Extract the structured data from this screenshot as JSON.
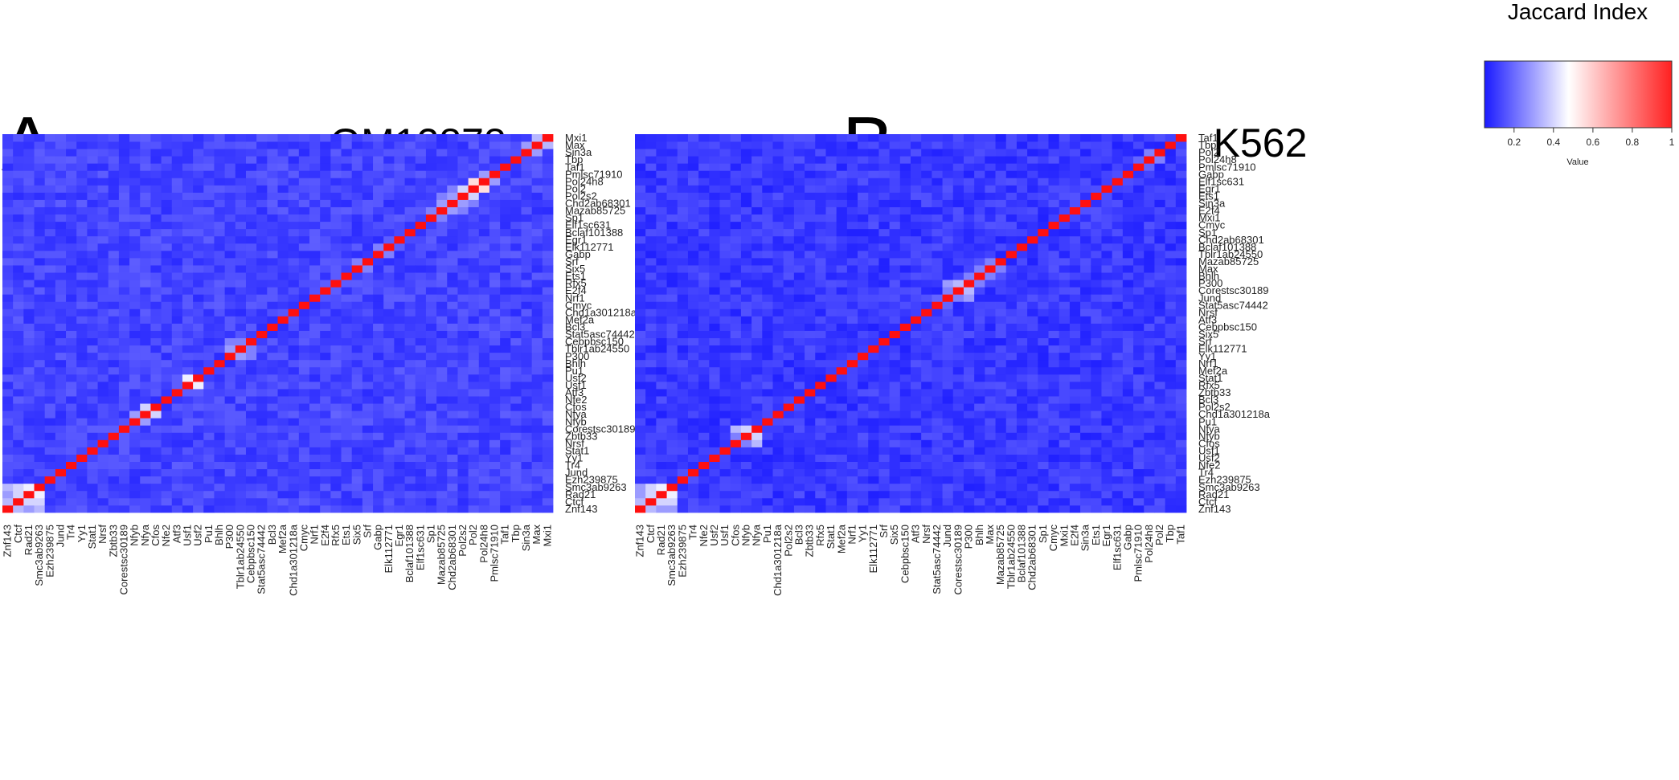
{
  "legend": {
    "title": "Jaccard Index",
    "label": "Value",
    "ticks": [
      "0.2",
      "0.4",
      "0.6",
      "0.8",
      "1"
    ],
    "tick_values": [
      0.2,
      0.4,
      0.6,
      0.8,
      1.0
    ],
    "range": [
      0.05,
      1.0
    ]
  },
  "colors": {
    "low": "#1010ff",
    "mid": "#ffffff",
    "high": "#ff1010"
  },
  "chart_data": [
    {
      "type": "heatmap",
      "panel": "A",
      "title": "GM12878",
      "labels": [
        "Znf143",
        "Ctcf",
        "Rad21",
        "Smc3ab9263",
        "Ezh239875",
        "Jund",
        "Tr4",
        "Yy1",
        "Stat1",
        "Nrsf",
        "Zbtb33",
        "Corestsc30189",
        "Nfyb",
        "Nfya",
        "Cfos",
        "Nfe2",
        "Atf3",
        "Usf1",
        "Usf2",
        "Pu1",
        "Bhlh",
        "P300",
        "Tblr1ab24550",
        "Cebpbsc150",
        "Stat5asc74442",
        "Bcl3",
        "Mef2a",
        "Chd1a301218a",
        "Cmyc",
        "Nrf1",
        "E2f4",
        "Rfx5",
        "Ets1",
        "Six5",
        "Srf",
        "Gabp",
        "Elk112771",
        "Egr1",
        "Bclaf101388",
        "Elf1sc631",
        "Sp1",
        "Mazab85725",
        "Chd2ab68301",
        "Pol2s2",
        "Pol2",
        "Pol24h8",
        "Pmlsc71910",
        "Taf1",
        "Tbp",
        "Sin3a",
        "Max",
        "Mxi1"
      ],
      "diagonal_value": 1.0,
      "background_value": 0.1,
      "highlights": [
        {
          "a": "Znf143",
          "b": "Ctcf",
          "value": 0.35
        },
        {
          "a": "Znf143",
          "b": "Rad21",
          "value": 0.3
        },
        {
          "a": "Znf143",
          "b": "Smc3ab9263",
          "value": 0.35
        },
        {
          "a": "Ctcf",
          "b": "Rad21",
          "value": 0.4
        },
        {
          "a": "Ctcf",
          "b": "Smc3ab9263",
          "value": 0.4
        },
        {
          "a": "Rad21",
          "b": "Smc3ab9263",
          "value": 0.45
        },
        {
          "a": "Nfya",
          "b": "Cfos",
          "value": 0.4
        },
        {
          "a": "Nfyb",
          "b": "Nfya",
          "value": 0.3
        },
        {
          "a": "Usf1",
          "b": "Usf2",
          "value": 0.45
        },
        {
          "a": "Pol2",
          "b": "Pol24h8",
          "value": 0.55
        },
        {
          "a": "Pol2s2",
          "b": "Pol2",
          "value": 0.4
        },
        {
          "a": "Pol24h8",
          "b": "Pmlsc71910",
          "value": 0.3
        },
        {
          "a": "Sin3a",
          "b": "Max",
          "value": 0.3
        },
        {
          "a": "Max",
          "b": "Mxi1",
          "value": 0.35
        },
        {
          "a": "P300",
          "b": "Tblr1ab24550",
          "value": 0.3
        },
        {
          "a": "P300",
          "b": "Cebpbsc150",
          "value": 0.25
        },
        {
          "a": "Tblr1ab24550",
          "b": "Cebpbsc150",
          "value": 0.25
        },
        {
          "a": "Mazab85725",
          "b": "Chd2ab68301",
          "value": 0.3
        },
        {
          "a": "Chd2ab68301",
          "b": "Pol2s2",
          "value": 0.3
        },
        {
          "a": "Mazab85725",
          "b": "Pol2s2",
          "value": 0.25
        },
        {
          "a": "Chd2ab68301",
          "b": "Pol2",
          "value": 0.25
        },
        {
          "a": "Sp1",
          "b": "Mazab85725",
          "value": 0.25
        },
        {
          "a": "Six5",
          "b": "Srf",
          "value": 0.25
        },
        {
          "a": "Gabp",
          "b": "Elk112771",
          "value": 0.25
        },
        {
          "a": "Nfya",
          "b": "Rfx5",
          "value": 0.2
        }
      ]
    },
    {
      "type": "heatmap",
      "panel": "B",
      "title": "K562",
      "labels": [
        "Znf143",
        "Ctcf",
        "Rad21",
        "Smc3ab9263",
        "Ezh239875",
        "Tr4",
        "Nfe2",
        "Usf2",
        "Usf1",
        "Cfos",
        "Nfyb",
        "Nfya",
        "Pu1",
        "Chd1a301218a",
        "Pol2s2",
        "Bcl3",
        "Zbtb33",
        "Rfx5",
        "Stat1",
        "Mef2a",
        "Nrf1",
        "Yy1",
        "Elk112771",
        "Srf",
        "Six5",
        "Cebpbsc150",
        "Atf3",
        "Nrsf",
        "Stat5asc74442",
        "Jund",
        "Corestsc30189",
        "P300",
        "Bhlh",
        "Max",
        "Mazab85725",
        "Tblr1ab24550",
        "Bclaf101388",
        "Chd2ab68301",
        "Sp1",
        "Cmyc",
        "Mxi1",
        "E2f4",
        "Sin3a",
        "Ets1",
        "Egr1",
        "Elf1sc631",
        "Gabp",
        "Pmlsc71910",
        "Pol24h8",
        "Pol2",
        "Tbp",
        "Taf1"
      ],
      "diagonal_value": 1.0,
      "background_value": 0.08,
      "highlights": [
        {
          "a": "Znf143",
          "b": "Ctcf",
          "value": 0.35
        },
        {
          "a": "Znf143",
          "b": "Rad21",
          "value": 0.3
        },
        {
          "a": "Znf143",
          "b": "Smc3ab9263",
          "value": 0.3
        },
        {
          "a": "Ctcf",
          "b": "Rad21",
          "value": 0.4
        },
        {
          "a": "Ctcf",
          "b": "Smc3ab9263",
          "value": 0.4
        },
        {
          "a": "Rad21",
          "b": "Smc3ab9263",
          "value": 0.45
        },
        {
          "a": "Cfos",
          "b": "Nfyb",
          "value": 0.25
        },
        {
          "a": "Cfos",
          "b": "Nfya",
          "value": 0.35
        },
        {
          "a": "Nfyb",
          "b": "Nfya",
          "value": 0.4
        },
        {
          "a": "Jund",
          "b": "Corestsc30189",
          "value": 0.25
        },
        {
          "a": "Jund",
          "b": "P300",
          "value": 0.3
        },
        {
          "a": "Corestsc30189",
          "b": "P300",
          "value": 0.35
        },
        {
          "a": "P300",
          "b": "Bhlh",
          "value": 0.25
        },
        {
          "a": "Max",
          "b": "Mazab85725",
          "value": 0.25
        },
        {
          "a": "Bhlh",
          "b": "Max",
          "value": 0.25
        },
        {
          "a": "Stat5asc74442",
          "b": "Jund",
          "value": 0.2
        },
        {
          "a": "Pol24h8",
          "b": "Pol2",
          "value": 0.25
        },
        {
          "a": "Pmlsc71910",
          "b": "Pol24h8",
          "value": 0.2
        }
      ]
    }
  ]
}
